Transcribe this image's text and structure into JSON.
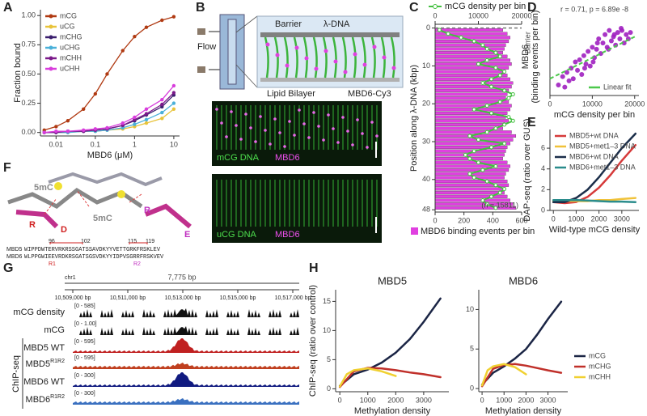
{
  "panel_labels": [
    "A",
    "B",
    "C",
    "D",
    "E",
    "F",
    "G",
    "H"
  ],
  "chart_data": [
    {
      "type": "line",
      "xlabel": "MBD6 (μM)",
      "ylabel": "Fraction bound",
      "xlog": true,
      "markers": true,
      "legend": "upper left",
      "xlim": [
        0.004,
        14
      ],
      "xticks": [
        0.01,
        0.1,
        1,
        10
      ],
      "ylim": [
        -0.03,
        1.05
      ],
      "yticks": [
        {
          "value": 0,
          "label": "0.00"
        },
        {
          "value": 0.25,
          "label": "0.25"
        },
        {
          "value": 0.5,
          "label": "0.50"
        },
        {
          "value": 0.75,
          "label": "0.75"
        },
        {
          "value": 1,
          "label": "1.00"
        }
      ],
      "x": [
        0.005,
        0.01,
        0.02,
        0.05,
        0.1,
        0.2,
        0.5,
        1,
        2,
        5,
        10
      ],
      "series": [
        {
          "name": "mCG",
          "color": "#b03a12",
          "values": [
            0.02,
            0.05,
            0.1,
            0.2,
            0.33,
            0.5,
            0.7,
            0.82,
            0.9,
            0.96,
            0.99
          ]
        },
        {
          "name": "uCG",
          "color": "#e8c33a",
          "values": [
            0,
            0,
            0,
            0.01,
            0.01,
            0.02,
            0.03,
            0.05,
            0.08,
            0.12,
            0.2
          ]
        },
        {
          "name": "mCHG",
          "color": "#3b1f6e",
          "values": [
            0,
            0,
            0.01,
            0.01,
            0.02,
            0.03,
            0.06,
            0.1,
            0.15,
            0.22,
            0.32
          ]
        },
        {
          "name": "uCHG",
          "color": "#4ab0d9",
          "values": [
            0,
            0,
            0,
            0.01,
            0.01,
            0.02,
            0.04,
            0.07,
            0.11,
            0.17,
            0.25
          ]
        },
        {
          "name": "mCHH",
          "color": "#7b1a8a",
          "values": [
            0,
            0,
            0.01,
            0.01,
            0.02,
            0.03,
            0.06,
            0.11,
            0.16,
            0.24,
            0.34
          ]
        },
        {
          "name": "uCHH",
          "color": "#d83ddc",
          "values": [
            0,
            0.01,
            0.01,
            0.02,
            0.03,
            0.04,
            0.08,
            0.13,
            0.2,
            0.28,
            0.4
          ]
        }
      ]
    },
    {
      "type": "bar",
      "orientation": "horizontal",
      "ylabel": "Position along λ-DNA (kbp)",
      "annotations": [
        "Barrier",
        "(n = 15811)"
      ],
      "barrier_position": 0,
      "xlim": [
        -1,
        48.6
      ],
      "xticks": [
        0,
        10,
        20,
        30,
        40,
        48
      ],
      "ylim": [
        0,
        600
      ],
      "yticks": [
        0,
        200,
        400,
        600
      ],
      "y2lim": [
        0,
        20000
      ],
      "y2ticks": [
        0,
        10000,
        20000
      ],
      "x": [
        0.5,
        1.5,
        2.5,
        3.5,
        4.5,
        5.5,
        6.5,
        7.5,
        8.5,
        9.5,
        10.5,
        11.5,
        12.5,
        13.5,
        14.5,
        15.5,
        16.5,
        17.5,
        18.5,
        19.5,
        20.5,
        21.5,
        22.5,
        23.5,
        24.5,
        25.5,
        26.5,
        27.5,
        28.5,
        29.5,
        30.5,
        31.5,
        32.5,
        33.5,
        34.5,
        35.5,
        36.5,
        37.5,
        38.5,
        39.5,
        40.5,
        41.5,
        42.5,
        43.5,
        44.5,
        45.5,
        46.5,
        47.5
      ],
      "series": [
        {
          "name": "MBD6 binding events per bin",
          "color": "#e040e0",
          "values": [
            470,
            500,
            520,
            510,
            490,
            480,
            470,
            500,
            520,
            530,
            510,
            490,
            500,
            520,
            540,
            530,
            510,
            500,
            490,
            510,
            530,
            520,
            500,
            490,
            510,
            480,
            470,
            530,
            560,
            540,
            520,
            500,
            490,
            480,
            470,
            500,
            520,
            510,
            490,
            480,
            500,
            510,
            490,
            480,
            500,
            520,
            540,
            560
          ]
        },
        {
          "name": "mCG density per bin",
          "color": "#44c040",
          "axis": "y2",
          "values": [
            1000,
            3000,
            6000,
            9000,
            11000,
            12000,
            14000,
            15000,
            12000,
            10000,
            14000,
            16000,
            15000,
            13000,
            11000,
            13000,
            16000,
            18000,
            17000,
            15000,
            12000,
            9000,
            13000,
            17000,
            18000,
            16000,
            14000,
            12000,
            8000,
            10000,
            16000,
            13000,
            9000,
            7000,
            8000,
            10000,
            14000,
            11000,
            8000,
            9000,
            12000,
            14000,
            16000,
            15000,
            13000,
            11000,
            12000,
            14000
          ]
        }
      ]
    },
    {
      "type": "scatter",
      "title": "r = 0.71, p = 6.89e -8",
      "xlabel": "mCG density per bin",
      "ylabel": [
        "MBD6",
        "(binding events per bin)"
      ],
      "legend": "lower right",
      "color": "#a020c0",
      "xlim": [
        0,
        21000
      ],
      "xticks": [
        0,
        10000,
        20000
      ],
      "ylim": [
        250,
        620
      ],
      "x": [
        2000,
        3000,
        3500,
        4000,
        5000,
        5500,
        6000,
        6500,
        7000,
        7500,
        8000,
        8500,
        9000,
        9500,
        10000,
        10500,
        11000,
        11500,
        12000,
        12500,
        13000,
        13500,
        14000,
        14500,
        15000,
        15500,
        16000,
        16500,
        17000,
        17500,
        18000,
        18500,
        19000,
        4500,
        8200,
        11200,
        13800,
        15200,
        16800,
        10200
      ],
      "values": [
        300,
        340,
        290,
        360,
        380,
        330,
        410,
        370,
        420,
        350,
        440,
        400,
        460,
        390,
        480,
        430,
        470,
        520,
        450,
        500,
        540,
        480,
        560,
        510,
        530,
        490,
        550,
        520,
        560,
        500,
        540,
        520,
        550,
        320,
        380,
        500,
        470,
        540,
        570,
        410
      ],
      "fit": {
        "name": "Linear fit",
        "color": "#4cc84c",
        "x": [
          0,
          20000
        ],
        "values": [
          330,
          530
        ]
      }
    },
    {
      "type": "line",
      "xlabel": "Wild-type mCG density",
      "ylabel": "DAP-seq (ratio over GUS)",
      "legend": "upper left",
      "xlim": [
        -150,
        3750
      ],
      "xticks": [
        0,
        1000,
        2000,
        3000
      ],
      "ylim": [
        0,
        7.8
      ],
      "yticks": [
        0,
        2,
        4,
        6
      ],
      "x": [
        0,
        500,
        1000,
        1500,
        2000,
        2500,
        3000,
        3600
      ],
      "series": [
        {
          "name": "MBD5+wt DNA",
          "color": "#d63a3a",
          "values": [
            0.8,
            0.7,
            0.8,
            1.3,
            2.2,
            3.4,
            4.8,
            6.3
          ]
        },
        {
          "name": "MBD5+met1–3 DNA",
          "color": "#f0c23a",
          "values": [
            0.9,
            0.9,
            0.9,
            0.9,
            1.0,
            1.0,
            1.1,
            1.2
          ]
        },
        {
          "name": "MBD6+wt DNA",
          "color": "#1b2e4a",
          "values": [
            0.8,
            0.8,
            1.2,
            2.0,
            3.2,
            4.6,
            6.0,
            7.4
          ]
        },
        {
          "name": "MBD6+met1–3 DNA",
          "color": "#2a8c8c",
          "values": [
            1.0,
            1.0,
            1.0,
            0.95,
            0.9,
            0.85,
            0.85,
            0.8
          ]
        }
      ]
    },
    {
      "type": "line",
      "title": "MBD5",
      "xlabel": "Methylation density",
      "ylabel": "ChIP-seq (ratio over control)",
      "xlim": [
        -150,
        3900
      ],
      "xticks": [
        0,
        1000,
        2000,
        3000
      ],
      "ylim": [
        -0.5,
        17
      ],
      "yticks": [
        0,
        5,
        10,
        15
      ],
      "series": [
        {
          "name": "mCG",
          "color": "#1b2545",
          "x": [
            0,
            500,
            1000,
            1500,
            2000,
            2500,
            3000,
            3600
          ],
          "values": [
            0.5,
            2.5,
            3.3,
            4.5,
            6.2,
            8.5,
            11.5,
            15.5
          ]
        },
        {
          "name": "mCHG",
          "color": "#c0302a",
          "x": [
            0,
            500,
            1000,
            1500,
            2000,
            2500,
            3000,
            3600
          ],
          "values": [
            0.3,
            3.0,
            3.6,
            3.5,
            3.2,
            2.8,
            2.5,
            2.0
          ]
        },
        {
          "name": "mCHH",
          "color": "#f0d030",
          "x": [
            0,
            250,
            500,
            1000,
            1500,
            2000
          ],
          "values": [
            0.4,
            2.5,
            3.2,
            3.5,
            3.0,
            2.2
          ]
        }
      ]
    },
    {
      "type": "line",
      "title": "MBD6",
      "xlabel": "Methylation density",
      "legend": "right",
      "xlim": [
        -150,
        3900
      ],
      "xticks": [
        0,
        1000,
        2000,
        3000
      ],
      "ylim": [
        -0.4,
        12.5
      ],
      "yticks": [
        0,
        5,
        10
      ],
      "series": [
        {
          "name": "mCG",
          "color": "#1b2545",
          "x": [
            0,
            500,
            1000,
            1500,
            2000,
            2500,
            3000,
            3600
          ],
          "values": [
            0.5,
            2.0,
            2.8,
            3.8,
            5.0,
            6.8,
            8.8,
            11
          ]
        },
        {
          "name": "mCHG",
          "color": "#c0302a",
          "x": [
            0,
            500,
            1000,
            1500,
            2000,
            2500,
            3000,
            3600
          ],
          "values": [
            0.3,
            2.5,
            3.0,
            3.1,
            2.9,
            2.6,
            2.3,
            2.0
          ]
        },
        {
          "name": "mCHH",
          "color": "#f0d030",
          "x": [
            0,
            250,
            500,
            1000,
            1500,
            2000
          ],
          "values": [
            0.4,
            2.3,
            2.8,
            3.1,
            2.7,
            1.8
          ]
        }
      ]
    }
  ],
  "diagrams": {
    "B": {
      "flow": "Flow",
      "labels": [
        "Barrier",
        "λ-DNA",
        "Lipid Bilayer",
        "MBD6-Cy3"
      ],
      "micrographs": [
        {
          "dna": "mCG DNA",
          "protein": "MBD6"
        },
        {
          "dna": "uCG DNA",
          "protein": "MBD6"
        }
      ]
    },
    "F": {
      "structure_labels": [
        "5mC",
        "5mC",
        "R",
        "D",
        "R",
        "E"
      ],
      "alignment": {
        "rows": [
          {
            "name": "MBD5",
            "sequence": "WIPPDWTERVRKRSSGATSSAVDKYYVETTGRKFRSKLEV"
          },
          {
            "name": "MBD6",
            "sequence": "WLPPGWIEEVRDKRSGATSGSVDKYYIDPVSGRRFRSKVEV"
          }
        ],
        "positions": [
          "96",
          "102",
          "115",
          "119"
        ],
        "regions": [
          "R1",
          "R2"
        ]
      }
    },
    "G": {
      "chromosome": "chr1",
      "span": "7,775 bp",
      "coordinates": [
        "10,509,000 bp",
        "10,511,000 bp",
        "10,513,000 bp",
        "10,515,000 bp",
        "10,517,000 bp"
      ],
      "group": "ChIP-seq",
      "tracks": [
        {
          "name": "mCG density",
          "range": "[0 - 585]"
        },
        {
          "name": "mCG",
          "range": "[0 - 1.00]"
        },
        {
          "name": "MBD5 WT",
          "range": "[0 - 595]"
        },
        {
          "name": "MBD5",
          "sup": "R1R2",
          "range": "[0 - 595]"
        },
        {
          "name": "MBD6 WT",
          "range": "[0 - 300]"
        },
        {
          "name": "MBD6",
          "sup": "R1R2",
          "range": "[0 - 300]"
        }
      ]
    }
  }
}
